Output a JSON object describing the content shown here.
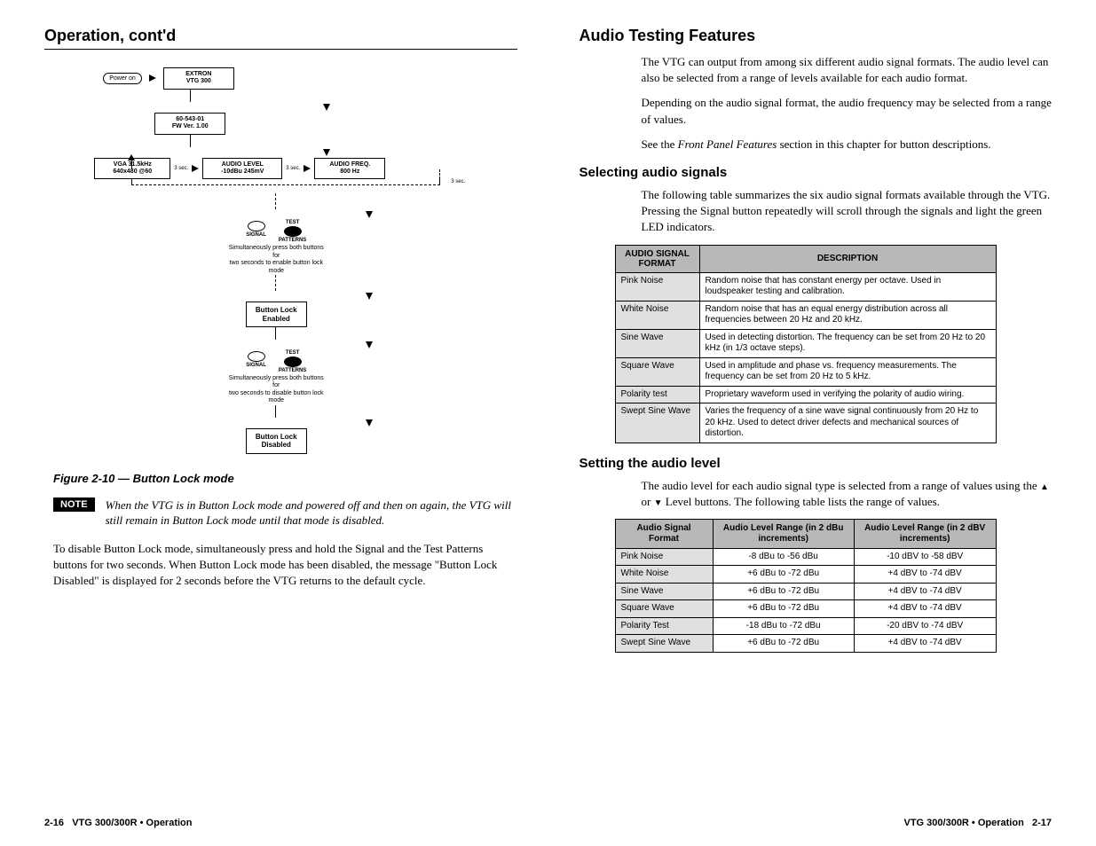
{
  "left": {
    "header": "Operation, cont'd",
    "diagram": {
      "power": "Power on",
      "box1": "EXTRON\nVTG  300",
      "box2": "60-543-01\nFW  Ver. 1.00",
      "box3": "VGA  31.5kHz\n640x480 @60",
      "box4": "AUDIO LEVEL\n-10dBu  245mV",
      "box5": "AUDIO FREQ.\n800 Hz",
      "sec": "3 sec.",
      "test": "TEST",
      "signal": "SIGNAL",
      "patterns": "PATTERNS",
      "instr1": "Simultaneously press both buttons for\ntwo seconds to enable button lock mode",
      "instr2": "Simultaneously press both buttons for\ntwo seconds to disable button lock mode",
      "lockEnabled": "Button Lock\nEnabled",
      "lockDisabled": "Button Lock\nDisabled"
    },
    "figureCaption": "Figure 2-10 — Button Lock mode",
    "noteBadge": "NOTE",
    "noteText": "When the VTG is in Button Lock mode and powered off and then on again, the VTG will still remain in Button Lock mode until that mode is disabled.",
    "para": "To disable Button Lock mode, simultaneously press and hold the Signal and the Test Patterns buttons for two seconds.  When Button Lock mode has been disabled, the message \"Button Lock Disabled\" is displayed for 2 seconds before the VTG returns to the default cycle."
  },
  "right": {
    "header": "Audio Testing Features",
    "para1": "The VTG can output from among six different audio signal formats.  The audio level can also be selected from a range of levels available for each audio format.",
    "para2": "Depending on the audio signal format, the audio frequency may be selected from a range of values.",
    "para3a": "See the ",
    "para3i": "Front Panel Features",
    "para3b": " section in this chapter for button descriptions.",
    "sub1": "Selecting audio signals",
    "para4": "The following table summarizes the six audio signal formats available through the VTG.  Pressing the Signal button repeatedly will scroll through the signals and light the green LED indicators.",
    "table1": {
      "h1": "AUDIO SIGNAL FORMAT",
      "h2": "DESCRIPTION",
      "rows": [
        {
          "fmt": "Pink Noise",
          "desc": "Random noise that has constant energy per octave. Used in loudspeaker testing and calibration."
        },
        {
          "fmt": "White Noise",
          "desc": "Random noise that has an equal energy distribution across all frequencies between 20 Hz and 20 kHz."
        },
        {
          "fmt": "Sine Wave",
          "desc": "Used in detecting distortion.  The frequency can be set from 20 Hz to 20 kHz (in 1/3 octave steps)."
        },
        {
          "fmt": "Square Wave",
          "desc": "Used in amplitude and phase vs. frequency measurements. The frequency can be set from 20 Hz to 5 kHz."
        },
        {
          "fmt": "Polarity test",
          "desc": "Proprietary waveform used in verifying the polarity of audio wiring."
        },
        {
          "fmt": "Swept Sine Wave",
          "desc": "Varies the frequency of a sine wave signal continuously from 20 Hz to 20 kHz.  Used to detect driver defects and mechanical sources of distortion."
        }
      ]
    },
    "sub2": "Setting the audio level",
    "para5a": "The audio level for each audio signal type is selected from a range of values using the ",
    "para5b": " or ",
    "para5c": " Level buttons.  The following table lists the range of values.",
    "table2": {
      "h1": "Audio Signal Format",
      "h2": "Audio Level Range (in 2 dBu increments)",
      "h3": "Audio Level Range (in 2 dBV increments)",
      "rows": [
        {
          "fmt": "Pink Noise",
          "dbu": "-8 dBu to -56 dBu",
          "dbv": "-10 dBV to -58 dBV"
        },
        {
          "fmt": "White Noise",
          "dbu": "+6 dBu to -72 dBu",
          "dbv": "+4 dBV to -74 dBV"
        },
        {
          "fmt": "Sine Wave",
          "dbu": "+6 dBu to -72 dBu",
          "dbv": "+4 dBV to -74 dBV"
        },
        {
          "fmt": "Square Wave",
          "dbu": "+6 dBu to -72 dBu",
          "dbv": "+4 dBV to -74 dBV"
        },
        {
          "fmt": "Polarity Test",
          "dbu": "-18 dBu to -72 dBu",
          "dbv": "-20 dBV to -74 dBV"
        },
        {
          "fmt": "Swept Sine Wave",
          "dbu": "+6 dBu to -72 dBu",
          "dbv": "+4 dBV to -74 dBV"
        }
      ]
    }
  },
  "footer": {
    "leftNum": "2-16",
    "leftText": "VTG 300/300R • Operation",
    "rightText": "VTG 300/300R • Operation",
    "rightNum": "2-17"
  },
  "colors": {
    "tableHeaderBg": "#b8b8b8",
    "tableFmtBg": "#e0e0e0",
    "noteBg": "#000000",
    "noteFg": "#ffffff"
  }
}
